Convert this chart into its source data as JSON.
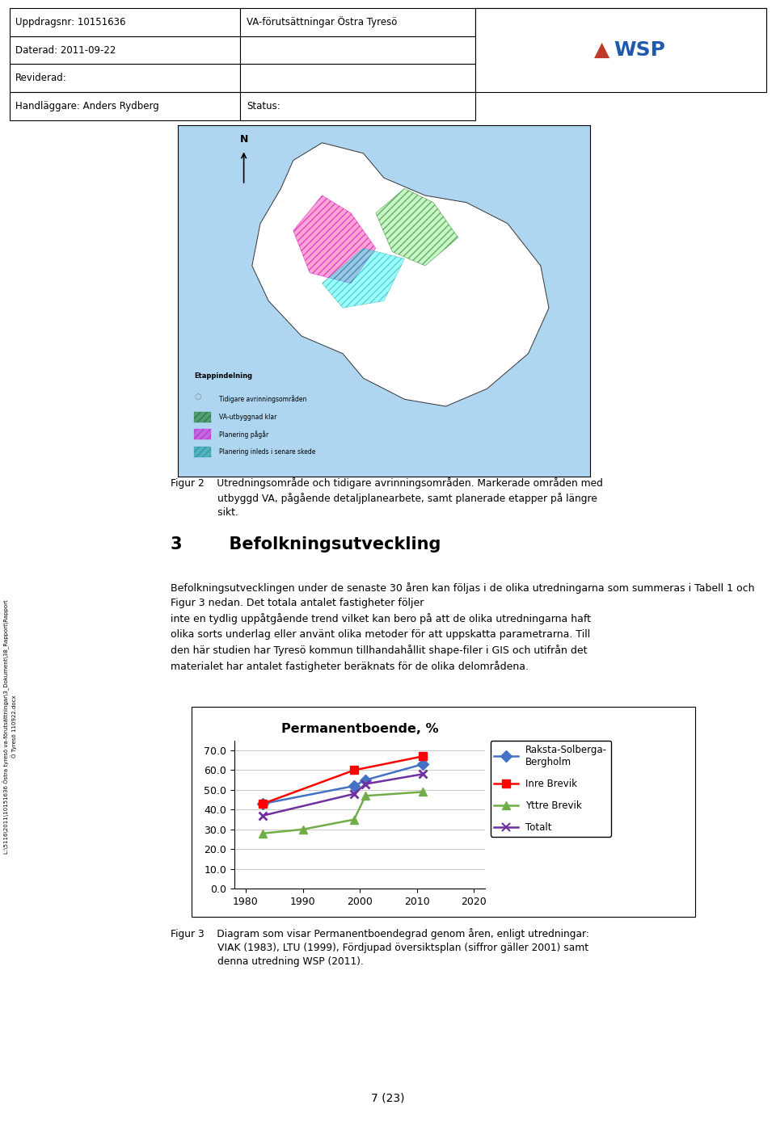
{
  "title": "Permanentboende, %",
  "series": [
    {
      "name": "Raksta-Solberga-\nBergholm",
      "color": "#4472C4",
      "marker": "D",
      "x": [
        1983,
        1999,
        2001,
        2011
      ],
      "y": [
        43.0,
        52.0,
        55.0,
        63.0
      ]
    },
    {
      "name": "Inre Brevik",
      "color": "#FF0000",
      "marker": "s",
      "x": [
        1983,
        1999,
        2011
      ],
      "y": [
        43.0,
        60.0,
        67.0
      ]
    },
    {
      "name": "Yttre Brevik",
      "color": "#70AD47",
      "marker": "^",
      "x": [
        1983,
        1990,
        1999,
        2001,
        2011
      ],
      "y": [
        28.0,
        30.0,
        35.0,
        47.0,
        49.0
      ]
    },
    {
      "name": "Totalt",
      "color": "#7030A0",
      "marker": "x",
      "x": [
        1983,
        1999,
        2001,
        2011
      ],
      "y": [
        37.0,
        48.0,
        53.0,
        58.0
      ]
    }
  ],
  "xlim": [
    1978,
    2022
  ],
  "ylim": [
    0,
    75
  ],
  "xticks": [
    1980,
    1990,
    2000,
    2010,
    2020
  ],
  "yticks": [
    0.0,
    10.0,
    20.0,
    30.0,
    40.0,
    50.0,
    60.0,
    70.0
  ],
  "grid_color": "#C0C0C0",
  "page_number": "7 (23)"
}
